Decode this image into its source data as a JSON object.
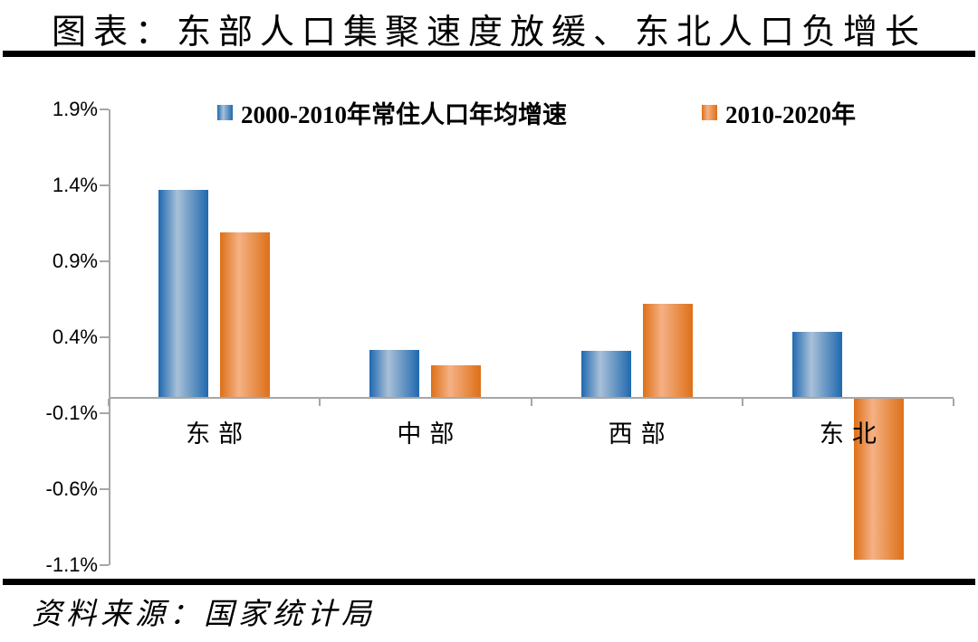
{
  "title": "图表：东部人口集聚速度放缓、东北人口负增长",
  "source": "资料来源：国家统计局",
  "colors": {
    "blue_dark": "#1f69af",
    "blue_light": "#a9c0d8",
    "orange_dark": "#dd7018",
    "orange_light": "#f5b184",
    "axis": "#a6a6a6",
    "rule": "#000000"
  },
  "chart_data": {
    "type": "bar",
    "unit": "percent",
    "categories": [
      "东部",
      "中部",
      "西部",
      "东北"
    ],
    "category_names": [
      "east",
      "central",
      "west",
      "northeast"
    ],
    "series": [
      {
        "name": "2000-2010年常住人口年均增速",
        "color_key": "blue",
        "values": [
          1.37,
          0.32,
          0.31,
          0.44
        ]
      },
      {
        "name": "2010-2020年",
        "color_key": "orange",
        "values": [
          1.09,
          0.22,
          0.62,
          -1.06
        ]
      }
    ],
    "title": "东部人口集聚速度放缓、东北人口负增长",
    "xlabel": "",
    "ylabel": "",
    "ylim": [
      -1.1,
      1.9
    ],
    "ytick_step": 0.5,
    "ytick_labels": [
      "1.9%",
      "1.4%",
      "0.9%",
      "0.4%",
      "-0.1%",
      "-0.6%",
      "-1.1%"
    ],
    "grid": false,
    "legend_position": "top"
  }
}
